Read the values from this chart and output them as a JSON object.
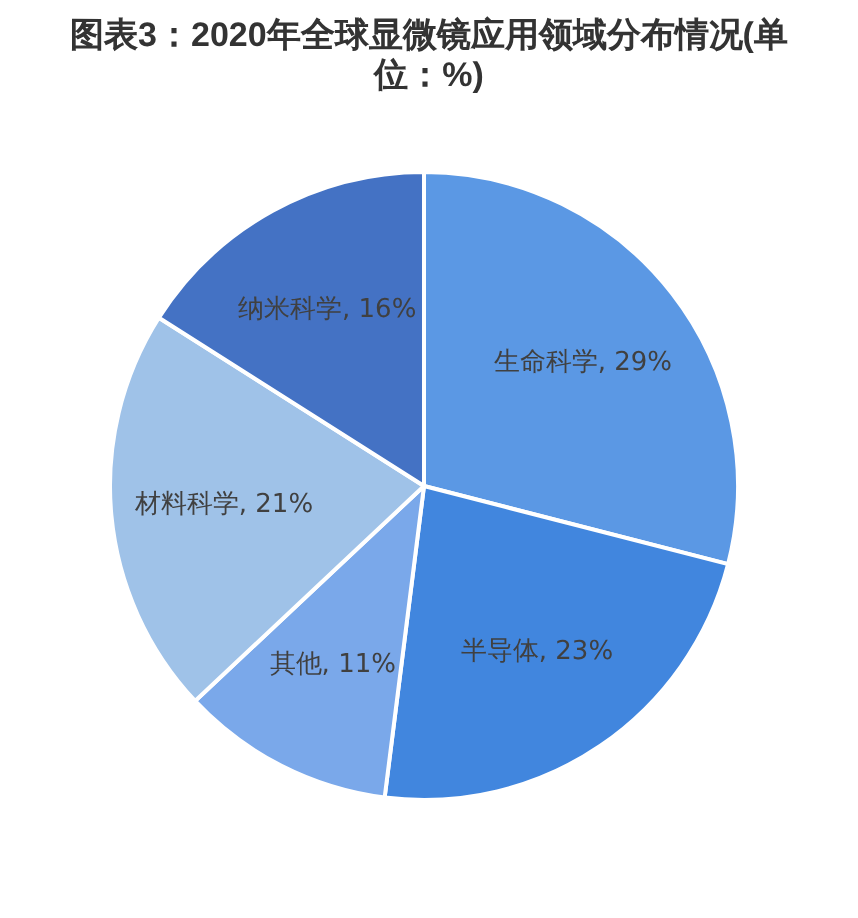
{
  "chart_data": {
    "type": "pie",
    "title": "图表3：2020年全球显微镜应用领域分布情况(单位：%)",
    "categories": [
      "生命科学",
      "半导体",
      "其他",
      "材料科学",
      "纳米科学"
    ],
    "values": [
      29,
      23,
      11,
      21,
      16
    ],
    "colors": [
      "#5b98e4",
      "#4186de",
      "#7aa8ea",
      "#9fc2e8",
      "#4472c4"
    ],
    "value_labels": [
      "29%",
      "23%",
      "11%",
      "21%",
      "16%"
    ]
  }
}
